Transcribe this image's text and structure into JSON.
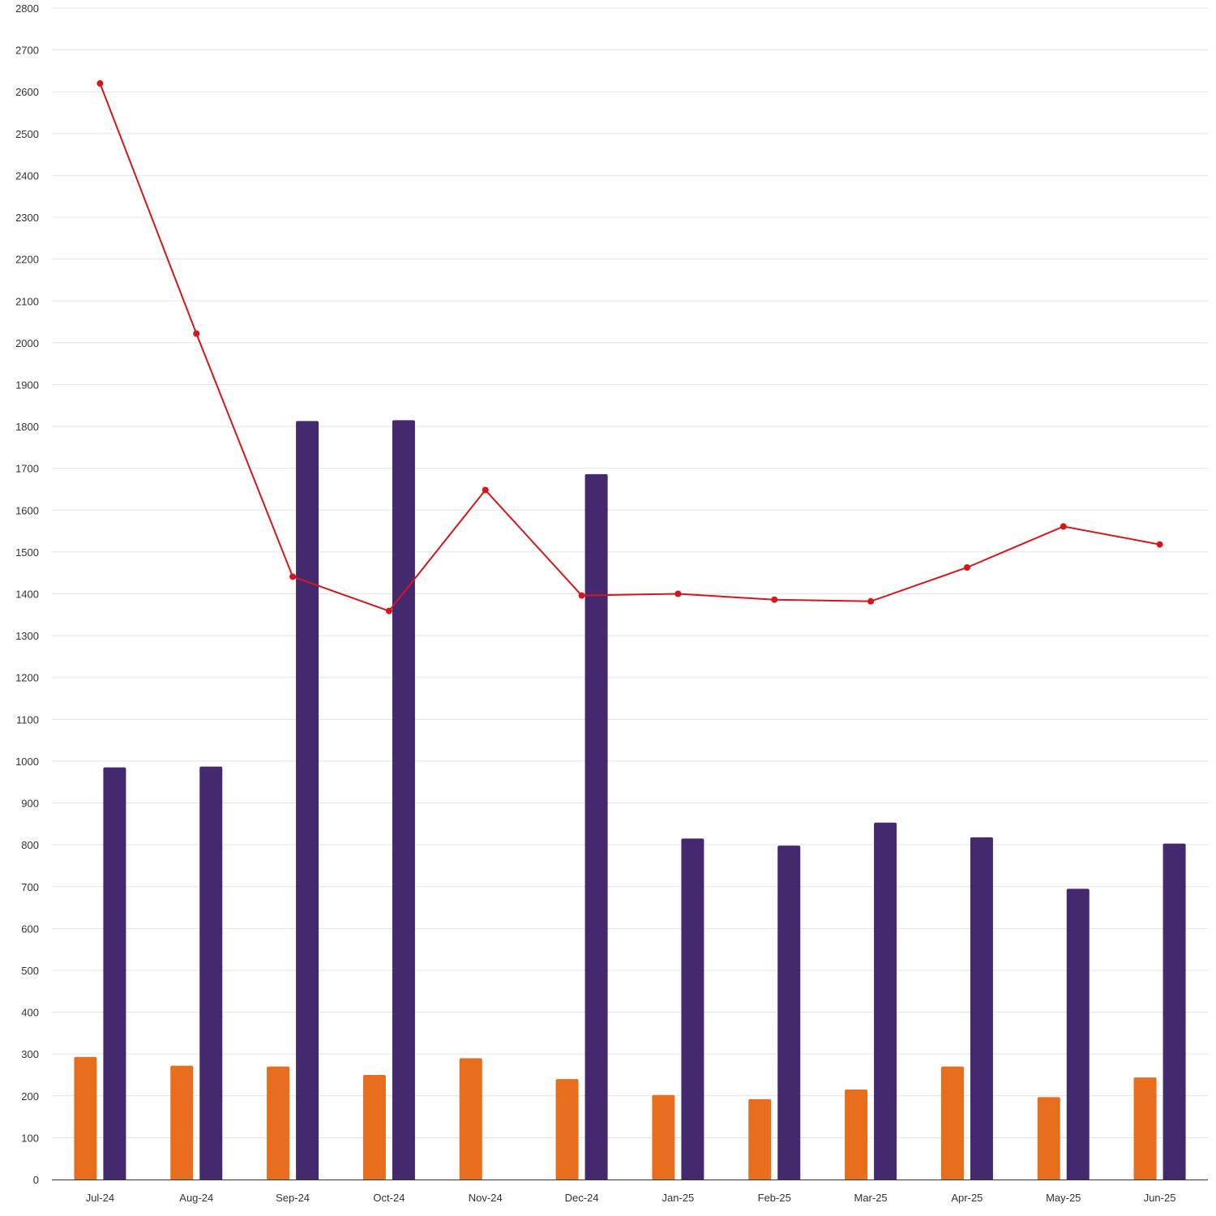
{
  "chart_data": {
    "type": "bar",
    "categories": [
      "Jul-24",
      "Aug-24",
      "Sep-24",
      "Oct-24",
      "Nov-24",
      "Dec-24",
      "Jan-25",
      "Feb-25",
      "Mar-25",
      "Apr-25",
      "May-25",
      "Jun-25"
    ],
    "series": [
      {
        "type": "bar",
        "color": "#e86e1e",
        "values": [
          293,
          272,
          270,
          250,
          290,
          240,
          202,
          192,
          215,
          270,
          197,
          244
        ]
      },
      {
        "type": "bar",
        "color": "#45296e",
        "values": [
          985,
          987,
          1813,
          1815,
          null,
          1686,
          815,
          798,
          853,
          818,
          695,
          803
        ]
      },
      {
        "type": "line",
        "color": "#d8161a",
        "values": [
          2620,
          2022,
          1441,
          1359,
          1648,
          1396,
          1400,
          1386,
          1382,
          1463,
          1561,
          1518
        ]
      }
    ],
    "yticks": [
      "0",
      "100",
      "200",
      "300",
      "400",
      "500",
      "600",
      "700",
      "800",
      "900",
      "1000",
      "1100",
      "1200",
      "1300",
      "1400",
      "1500",
      "1600",
      "1700",
      "1800",
      "1900",
      "2000",
      "2100",
      "2200",
      "2300",
      "2400",
      "2500",
      "2600",
      "2700",
      "2800"
    ],
    "ylim": [
      0,
      2800
    ],
    "grid": true,
    "legend": "none"
  }
}
